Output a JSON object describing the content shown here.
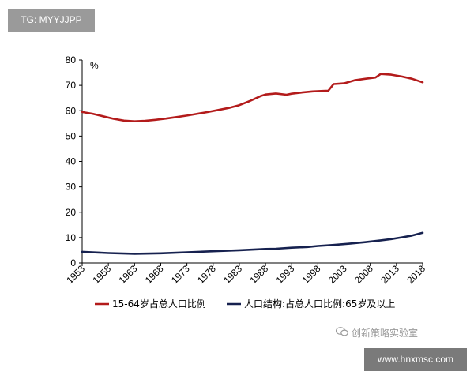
{
  "overlay": {
    "top_badge": "TG: MYYJJPP",
    "watermark_text": "创新策略实验室",
    "watermark_icon": "chat-bubble-icon",
    "bottom_badge": "www.hnxmsc.com"
  },
  "chart_data": {
    "type": "line",
    "unit_label": "%",
    "ylim": [
      0,
      80
    ],
    "yticks": [
      0,
      10,
      20,
      30,
      40,
      50,
      60,
      70,
      80
    ],
    "xlim": [
      1953,
      2018
    ],
    "xticks": [
      "1953",
      "1958",
      "1963",
      "1968",
      "1973",
      "1978",
      "1983",
      "1988",
      "1993",
      "1998",
      "2003",
      "2008",
      "2013",
      "2018"
    ],
    "grid": false,
    "legend_position": "bottom",
    "series": [
      {
        "name": "15-64岁占总人口比例",
        "color": "#b31b1b",
        "x": [
          1953,
          1955,
          1957,
          1959,
          1961,
          1963,
          1965,
          1967,
          1969,
          1971,
          1973,
          1975,
          1977,
          1979,
          1981,
          1983,
          1985,
          1987,
          1988,
          1990,
          1992,
          1993,
          1995,
          1997,
          1999,
          2000,
          2001,
          2003,
          2005,
          2007,
          2009,
          2010,
          2012,
          2014,
          2016,
          2018
        ],
        "values": [
          59.5,
          58.8,
          57.8,
          56.8,
          56.1,
          55.8,
          56.0,
          56.4,
          56.9,
          57.5,
          58.1,
          58.8,
          59.5,
          60.3,
          61.1,
          62.2,
          63.8,
          65.7,
          66.4,
          66.8,
          66.3,
          66.7,
          67.2,
          67.6,
          67.8,
          67.9,
          70.5,
          70.8,
          72.0,
          72.6,
          73.1,
          74.5,
          74.2,
          73.5,
          72.6,
          71.2
        ]
      },
      {
        "name": "人口结构:占总人口比例:65岁及以上",
        "color": "#16214f",
        "x": [
          1953,
          1958,
          1963,
          1968,
          1973,
          1978,
          1983,
          1988,
          1990,
          1993,
          1996,
          1998,
          2001,
          2004,
          2007,
          2010,
          2012,
          2014,
          2016,
          2018
        ],
        "values": [
          4.4,
          3.9,
          3.6,
          3.8,
          4.2,
          4.6,
          5.0,
          5.5,
          5.6,
          6.0,
          6.3,
          6.7,
          7.1,
          7.6,
          8.2,
          8.9,
          9.4,
          10.1,
          10.8,
          11.9
        ]
      }
    ]
  }
}
